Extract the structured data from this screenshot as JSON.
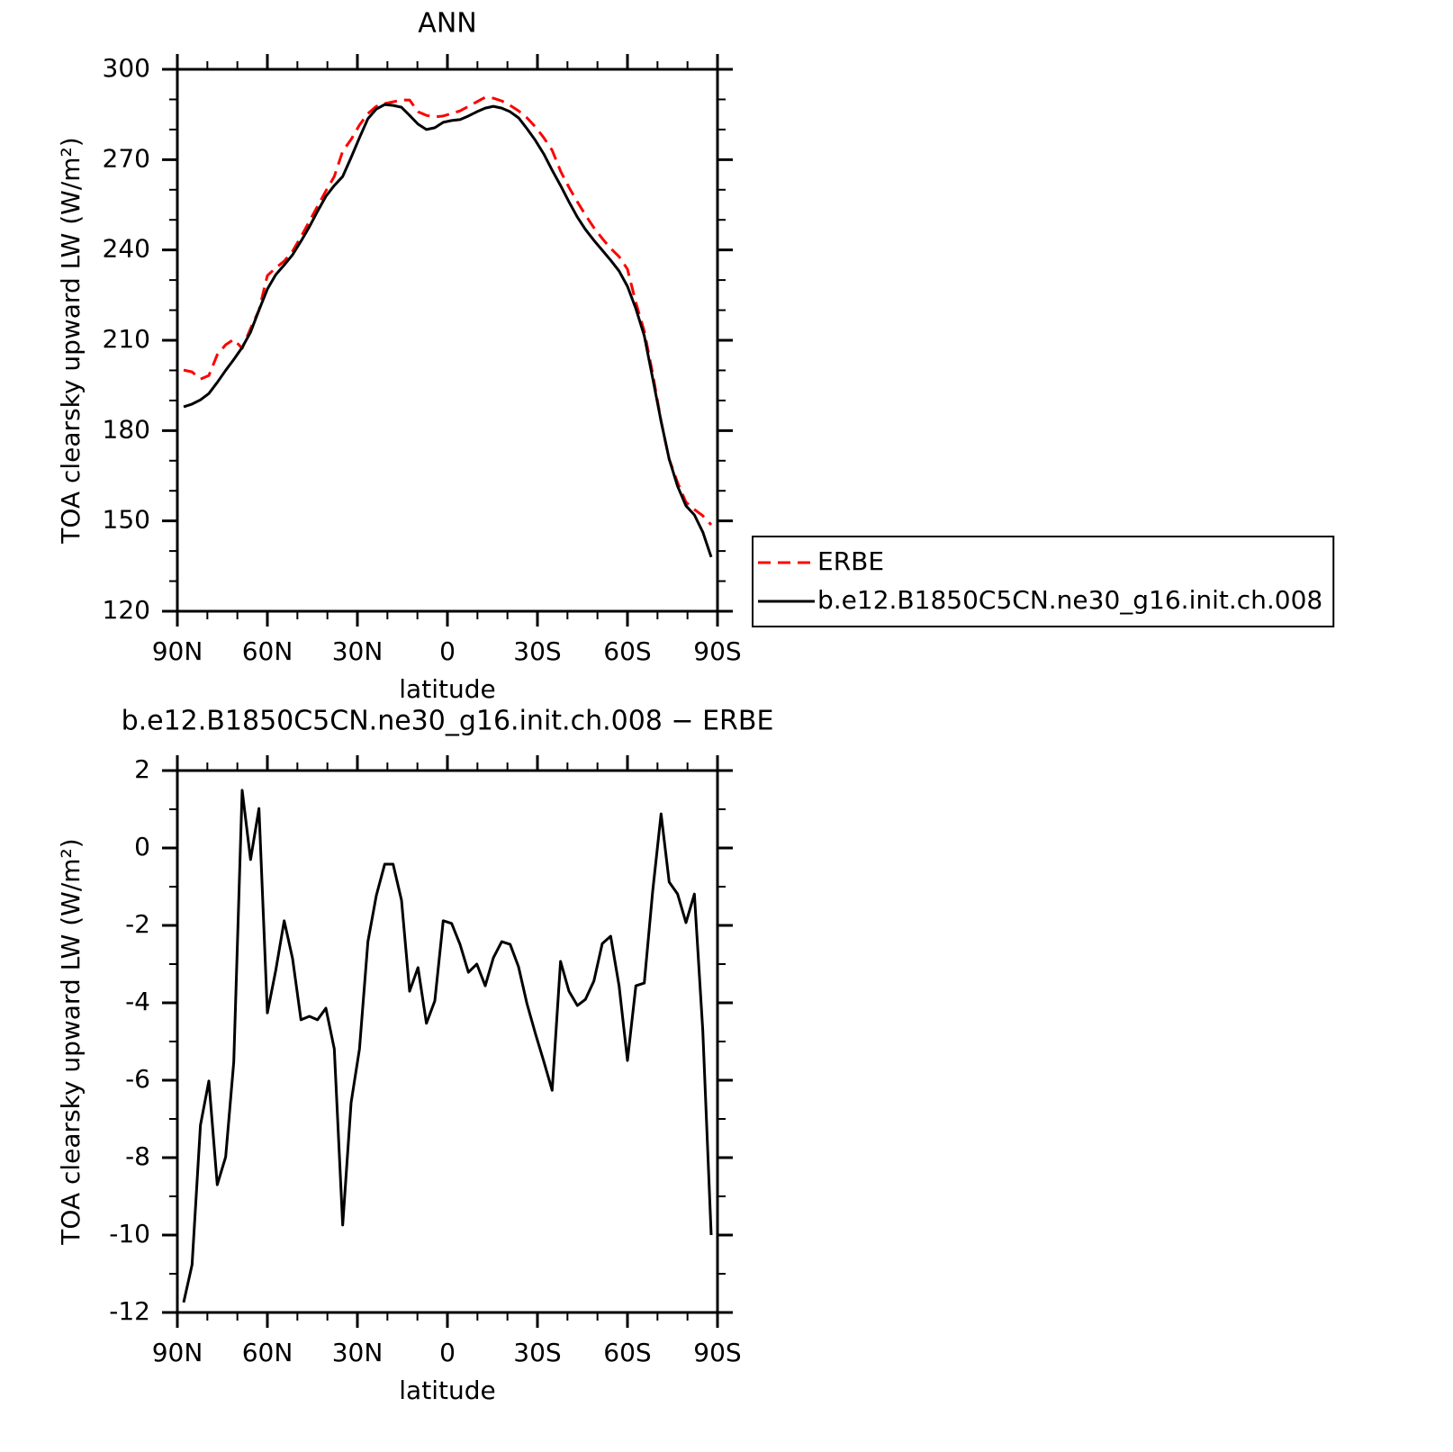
{
  "chart_data": [
    {
      "type": "line",
      "title": "ANN",
      "xlabel": "latitude",
      "ylabel": "TOA clearsky upward LW (W/m²)",
      "x": [
        87.9,
        85.1,
        82.3,
        79.5,
        76.7,
        73.9,
        71.2,
        68.4,
        65.6,
        62.8,
        60.0,
        57.2,
        54.4,
        51.6,
        48.8,
        46.0,
        43.3,
        40.5,
        37.7,
        34.9,
        32.1,
        29.3,
        26.5,
        23.7,
        20.9,
        18.1,
        15.3,
        12.6,
        9.8,
        7.0,
        4.2,
        1.4,
        -1.4,
        -4.2,
        -7.0,
        -9.8,
        -12.6,
        -15.3,
        -18.1,
        -20.9,
        -23.7,
        -26.5,
        -29.3,
        -32.1,
        -34.9,
        -37.7,
        -40.5,
        -43.3,
        -46.0,
        -48.8,
        -51.6,
        -54.4,
        -57.2,
        -60.0,
        -62.8,
        -65.6,
        -68.4,
        -71.2,
        -73.9,
        -76.7,
        -79.5,
        -82.3,
        -85.1,
        -87.9
      ],
      "series": [
        {
          "name": "ERBE",
          "color": "#ff0000",
          "dash": true,
          "values": [
            200.1,
            199.5,
            197.1,
            198.3,
            205.2,
            208.5,
            210.3,
            207.3,
            213.9,
            220.0,
            231.5,
            234.0,
            236.3,
            239.6,
            244.4,
            249.5,
            254.5,
            259.6,
            264.4,
            272.8,
            276.7,
            281.5,
            285.3,
            287.7,
            288.6,
            289.2,
            289.8,
            289.8,
            285.9,
            284.7,
            284.2,
            284.5,
            285.3,
            286.2,
            287.7,
            289.2,
            290.7,
            290.4,
            289.5,
            288.0,
            286.2,
            283.9,
            280.9,
            277.3,
            273.1,
            266.2,
            260.8,
            256.0,
            251.6,
            247.4,
            243.8,
            240.5,
            237.8,
            233.6,
            222.5,
            213.0,
            198.9,
            183.1,
            170.5,
            162.7,
            156.2,
            153.8,
            151.7,
            148.7
          ]
        },
        {
          "name": "b.e12.B1850C5CN.ne30_g16.init.ch.008",
          "color": "#000000",
          "dash": false,
          "values": [
            187.9,
            188.8,
            190.2,
            192.3,
            196.0,
            200.0,
            203.6,
            207.6,
            212.7,
            220.0,
            227.0,
            231.8,
            235.0,
            238.4,
            242.9,
            247.7,
            252.8,
            257.8,
            261.4,
            264.4,
            270.7,
            277.3,
            283.6,
            286.8,
            288.3,
            288.0,
            287.4,
            284.7,
            281.8,
            280.0,
            280.6,
            282.4,
            283.0,
            283.3,
            284.5,
            285.9,
            287.1,
            287.7,
            287.1,
            285.9,
            283.9,
            280.3,
            276.4,
            271.9,
            266.5,
            261.4,
            256.0,
            250.9,
            246.8,
            243.2,
            239.9,
            236.6,
            233.0,
            227.9,
            220.5,
            211.5,
            197.4,
            183.1,
            170.5,
            161.5,
            155.0,
            152.0,
            146.3,
            138.0
          ]
        }
      ],
      "xlim": [
        90,
        -90
      ],
      "xticks": [
        {
          "value": 90,
          "label": "90N"
        },
        {
          "value": 60,
          "label": "60N"
        },
        {
          "value": 30,
          "label": "30N"
        },
        0,
        {
          "value": -30,
          "label": "30S"
        },
        {
          "value": -60,
          "label": "60S"
        },
        {
          "value": -90,
          "label": "90S"
        }
      ],
      "ylim": [
        120,
        300
      ],
      "yticks": [
        120,
        150,
        180,
        210,
        240,
        270,
        300
      ],
      "legend": "right"
    },
    {
      "type": "line",
      "title": "b.e12.B1850C5CN.ne30_g16.init.ch.008 − ERBE",
      "xlabel": "latitude",
      "ylabel": "TOA clearsky upward LW (W/m²)",
      "x": [
        87.9,
        85.1,
        82.3,
        79.5,
        76.7,
        73.9,
        71.2,
        68.4,
        65.6,
        62.8,
        60.0,
        57.2,
        54.4,
        51.6,
        48.8,
        46.0,
        43.3,
        40.5,
        37.7,
        34.9,
        32.1,
        29.3,
        26.5,
        23.7,
        20.9,
        18.1,
        15.3,
        12.6,
        9.8,
        7.0,
        4.2,
        1.4,
        -1.4,
        -4.2,
        -7.0,
        -9.8,
        -12.6,
        -15.3,
        -18.1,
        -20.9,
        -23.7,
        -26.5,
        -29.3,
        -32.1,
        -34.9,
        -37.7,
        -40.5,
        -43.3,
        -46.0,
        -48.8,
        -51.6,
        -54.4,
        -57.2,
        -60.0,
        -62.8,
        -65.6,
        -68.4,
        -71.2,
        -73.9,
        -76.7,
        -79.5,
        -82.3,
        -85.1,
        -87.9
      ],
      "series": [
        {
          "color": "#000000",
          "dash": false,
          "values": [
            -11.74,
            -10.77,
            -7.16,
            -6.02,
            -8.7,
            -7.98,
            -5.53,
            1.49,
            -0.3,
            1.02,
            -4.26,
            -3.16,
            -1.88,
            -2.86,
            -4.44,
            -4.35,
            -4.44,
            -4.14,
            -5.19,
            -9.74,
            -6.58,
            -5.19,
            -2.42,
            -1.23,
            -0.42,
            -0.42,
            -1.35,
            -3.7,
            -3.09,
            -4.53,
            -3.95,
            -1.88,
            -1.95,
            -2.49,
            -3.21,
            -3.0,
            -3.56,
            -2.84,
            -2.42,
            -2.49,
            -3.07,
            -4.02,
            -4.79,
            -5.51,
            -6.26,
            -2.93,
            -3.7,
            -4.07,
            -3.91,
            -3.44,
            -2.47,
            -2.28,
            -3.56,
            -5.49,
            -3.56,
            -3.49,
            -1.12,
            0.88,
            -0.88,
            -1.19,
            -1.93,
            -1.19,
            -4.72,
            -10.0
          ]
        }
      ],
      "xlim": [
        90,
        -90
      ],
      "xticks": [
        {
          "value": 90,
          "label": "90N"
        },
        {
          "value": 60,
          "label": "60N"
        },
        {
          "value": 30,
          "label": "30N"
        },
        0,
        {
          "value": -30,
          "label": "30S"
        },
        {
          "value": -60,
          "label": "60S"
        },
        {
          "value": -90,
          "label": "90S"
        }
      ],
      "ylim": [
        -12,
        2
      ],
      "yticks": [
        -12,
        -10,
        -8,
        -6,
        -4,
        -2,
        0,
        2
      ]
    }
  ]
}
